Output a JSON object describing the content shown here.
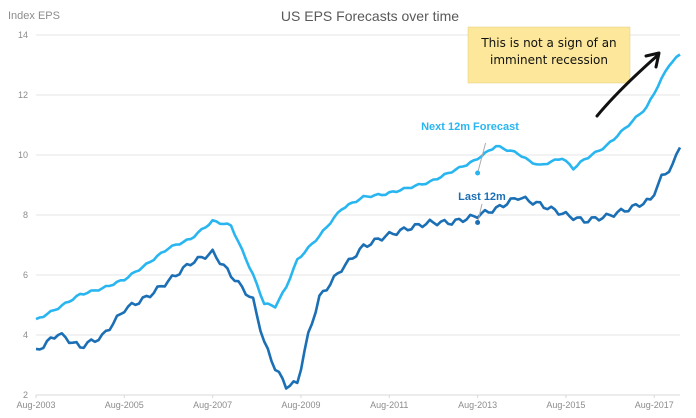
{
  "chart_data": {
    "type": "line",
    "title": "US EPS Forecasts over time",
    "ylabel": "Index EPS",
    "xlabel": "",
    "ylim": [
      2,
      14
    ],
    "y_ticks": [
      "2",
      "4",
      "6",
      "8",
      "10",
      "12",
      "14"
    ],
    "x_ticks": [
      "Aug-2003",
      "Aug-2005",
      "Aug-2007",
      "Aug-2009",
      "Aug-2011",
      "Aug-2013",
      "Aug-2015",
      "Aug-2017"
    ],
    "grid": true,
    "series": [
      {
        "name": "Next 12m Forecast",
        "color": "#29b6f0",
        "labels_annotation": "Next 12m Forecast",
        "x": [
          "Aug-2003",
          "Feb-2004",
          "Aug-2004",
          "Feb-2005",
          "Aug-2005",
          "Feb-2006",
          "Aug-2006",
          "Feb-2007",
          "Aug-2007",
          "Jan-2008",
          "Jul-2008",
          "Oct-2008",
          "Jan-2009",
          "Apr-2009",
          "Jul-2009",
          "Jan-2010",
          "Jul-2010",
          "Jan-2011",
          "Jul-2011",
          "Jan-2012",
          "Jul-2012",
          "Jan-2013",
          "Jul-2013",
          "Jan-2014",
          "Jul-2014",
          "Oct-2014",
          "Jan-2015",
          "Jul-2015",
          "Oct-2015",
          "Jan-2016",
          "Jul-2016",
          "Jan-2017",
          "Jun-2017",
          "Sep-2017",
          "Dec-2017",
          "Mar-2018"
        ],
        "values": [
          4.5,
          4.9,
          5.35,
          5.55,
          5.85,
          6.35,
          6.9,
          7.2,
          7.8,
          7.65,
          6.0,
          5.05,
          4.95,
          5.6,
          6.5,
          7.3,
          8.2,
          8.6,
          8.7,
          8.9,
          9.1,
          9.45,
          9.8,
          10.3,
          10.05,
          9.8,
          9.65,
          9.9,
          9.55,
          9.85,
          10.3,
          11.0,
          11.6,
          12.3,
          13.0,
          13.35
        ]
      },
      {
        "name": "Last 12m",
        "color": "#1b6fb5",
        "x": [
          "Aug-2003",
          "Feb-2004",
          "Aug-2004",
          "Feb-2005",
          "Aug-2005",
          "Feb-2006",
          "Aug-2006",
          "Feb-2007",
          "Aug-2007",
          "Jan-2008",
          "Jul-2008",
          "Oct-2008",
          "Jan-2009",
          "Apr-2009",
          "Jul-2009",
          "Oct-2009",
          "Jan-2010",
          "Jul-2010",
          "Jan-2011",
          "Jul-2011",
          "Jan-2012",
          "Jul-2012",
          "Jan-2013",
          "Jul-2013",
          "Jan-2014",
          "Jul-2014",
          "Jan-2015",
          "Jul-2015",
          "Jan-2016",
          "Jul-2016",
          "Jan-2017",
          "Jul-2017",
          "Oct-2017",
          "Jan-2018",
          "Mar-2018"
        ],
        "values": [
          3.45,
          4.05,
          3.6,
          3.95,
          4.85,
          5.25,
          5.8,
          6.4,
          6.75,
          6.0,
          5.15,
          3.75,
          2.9,
          2.3,
          2.4,
          4.0,
          5.25,
          6.2,
          6.95,
          7.3,
          7.55,
          7.75,
          7.75,
          7.95,
          8.2,
          8.6,
          8.35,
          8.05,
          7.8,
          7.95,
          8.2,
          8.5,
          9.25,
          9.65,
          10.25
        ]
      }
    ],
    "annotations": [
      {
        "text": "Next 12m Forecast"
      },
      {
        "text": "Last 12m"
      },
      {
        "text": "This is not a sign of an imminent recession",
        "lines": [
          "This is not a sign of an",
          "imminent recession"
        ]
      }
    ]
  }
}
